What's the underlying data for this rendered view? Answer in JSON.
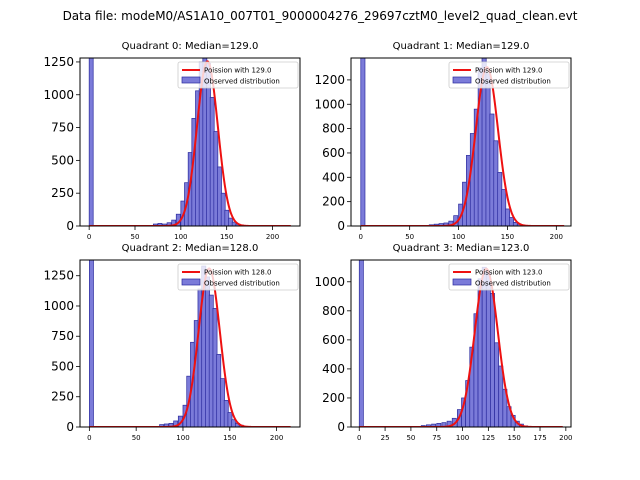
{
  "figure": {
    "suptitle": "Data file: modeM0/AS1A10_007T01_9000004276_29697cztM0_level2_quad_clean.evt",
    "colors": {
      "bar_fill": "#7b7bd9",
      "bar_edge": "#2b2b9e",
      "poisson_line": "#ee1111",
      "axes": "#000000"
    }
  },
  "chart_data": [
    {
      "type": "bar",
      "title": "Quadrant 0: Median=129.0",
      "xlabel": "",
      "ylabel": "",
      "xlim": [
        -10,
        230
      ],
      "ylim": [
        0,
        1280
      ],
      "xticks": [
        0,
        50,
        100,
        150,
        200
      ],
      "yticks": [
        0,
        250,
        500,
        750,
        1000,
        1250
      ],
      "bin_width": 4.4,
      "bins_x": [
        0,
        70,
        75,
        80,
        85,
        90,
        95,
        100,
        104,
        108,
        112,
        116,
        120,
        124,
        128,
        132,
        136,
        140,
        144,
        148,
        152,
        156,
        160,
        164,
        168
      ],
      "bins_y": [
        1280,
        15,
        20,
        15,
        25,
        45,
        90,
        190,
        330,
        560,
        820,
        1030,
        1250,
        1280,
        1240,
        980,
        720,
        450,
        250,
        120,
        60,
        30,
        15,
        8,
        3
      ],
      "poisson_mean": 129.0,
      "poisson_peak": 1255,
      "line_x_range": [
        0,
        220
      ],
      "legend": [
        "Poission with 129.0",
        "Observed distribution"
      ],
      "legend_loc": "upper right"
    },
    {
      "type": "bar",
      "title": "Quadrant 1: Median=129.0",
      "xlabel": "",
      "ylabel": "",
      "xlim": [
        -10,
        215
      ],
      "ylim": [
        0,
        1380
      ],
      "xticks": [
        0,
        50,
        100,
        150,
        200
      ],
      "yticks": [
        0,
        200,
        400,
        600,
        800,
        1000,
        1200
      ],
      "bin_width": 4.3,
      "bins_x": [
        0,
        70,
        75,
        80,
        85,
        90,
        95,
        100,
        104,
        108,
        112,
        116,
        120,
        124,
        128,
        132,
        136,
        140,
        144,
        148,
        152,
        156,
        160,
        164
      ],
      "bins_y": [
        1380,
        10,
        15,
        20,
        25,
        40,
        85,
        180,
        360,
        580,
        760,
        960,
        1300,
        1380,
        1250,
        920,
        700,
        440,
        300,
        140,
        70,
        30,
        15,
        5
      ],
      "poisson_mean": 129.0,
      "poisson_peak": 1305,
      "line_x_range": [
        0,
        208
      ],
      "legend": [
        "Poission with 129.0",
        "Observed distribution"
      ],
      "legend_loc": "upper right"
    },
    {
      "type": "bar",
      "title": "Quadrant 2: Median=128.0",
      "xlabel": "",
      "ylabel": "",
      "xlim": [
        -10,
        225
      ],
      "ylim": [
        0,
        1380
      ],
      "xticks": [
        0,
        50,
        100,
        150,
        200
      ],
      "yticks": [
        0,
        250,
        500,
        750,
        1000,
        1250
      ],
      "bin_width": 4.4,
      "bins_x": [
        0,
        75,
        80,
        85,
        90,
        95,
        100,
        104,
        108,
        112,
        116,
        120,
        124,
        128,
        132,
        136,
        140,
        144,
        148,
        152,
        156,
        160,
        164
      ],
      "bins_y": [
        1380,
        20,
        25,
        30,
        50,
        90,
        180,
        420,
        700,
        880,
        1140,
        1330,
        1240,
        1090,
        980,
        600,
        400,
        220,
        120,
        60,
        30,
        15,
        5
      ],
      "poisson_mean": 128.0,
      "poisson_peak": 1310,
      "line_x_range": [
        0,
        215
      ],
      "legend": [
        "Poission with 128.0",
        "Observed distribution"
      ],
      "legend_loc": "upper right"
    },
    {
      "type": "bar",
      "title": "Quadrant 3: Median=123.0",
      "xlabel": "",
      "ylabel": "",
      "xlim": [
        -8,
        205
      ],
      "ylim": [
        0,
        1150
      ],
      "xticks": [
        0,
        25,
        50,
        75,
        100,
        125,
        150,
        175,
        200
      ],
      "yticks": [
        0,
        200,
        400,
        600,
        800,
        1000
      ],
      "bin_width": 4.0,
      "bins_x": [
        0,
        60,
        65,
        70,
        75,
        80,
        85,
        90,
        95,
        99,
        103,
        107,
        111,
        115,
        119,
        123,
        127,
        131,
        135,
        139,
        143,
        147,
        151,
        155,
        159
      ],
      "bins_y": [
        1150,
        10,
        15,
        20,
        25,
        30,
        40,
        60,
        120,
        200,
        320,
        550,
        780,
        1020,
        1100,
        1060,
        920,
        580,
        420,
        260,
        140,
        80,
        40,
        20,
        8
      ],
      "poisson_mean": 123.0,
      "poisson_peak": 1090,
      "line_x_range": [
        0,
        197
      ],
      "legend": [
        "Poission with 123.0",
        "Observed distribution"
      ],
      "legend_loc": "upper right"
    }
  ]
}
